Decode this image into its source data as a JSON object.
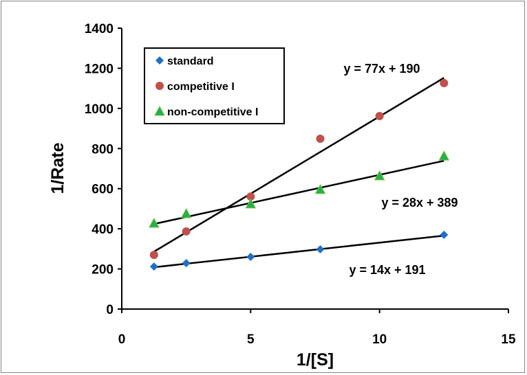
{
  "chart_data": {
    "type": "scatter",
    "title": "",
    "xlabel": "1/[S]",
    "ylabel": "1/Rate",
    "xlim": [
      0,
      15
    ],
    "ylim": [
      0,
      1400
    ],
    "xticks": [
      0,
      5,
      10,
      15
    ],
    "yticks": [
      0,
      200,
      400,
      600,
      800,
      1000,
      1200,
      1400
    ],
    "grid": false,
    "legend_position": "top-left",
    "series": [
      {
        "name": "standard",
        "marker": "diamond",
        "color": "#1F6FC5",
        "x": [
          1.25,
          2.5,
          5,
          7.7,
          10,
          12.5
        ],
        "y": [
          212,
          229,
          260,
          298,
          null,
          370
        ],
        "trendline": {
          "slope": 14,
          "intercept": 191,
          "label": "y = 14x + 191"
        }
      },
      {
        "name": "competitive I",
        "marker": "circle",
        "color": "#C0504D",
        "x": [
          1.25,
          2.5,
          5,
          7.7,
          10,
          12.5
        ],
        "y": [
          270,
          387,
          561,
          849,
          962,
          1126
        ],
        "trendline": {
          "slope": 77,
          "intercept": 190,
          "label": "y = 77x + 190"
        }
      },
      {
        "name": "non-competitive I",
        "marker": "triangle",
        "color": "#22B14C",
        "x": [
          1.25,
          2.5,
          5,
          7.7,
          10,
          12.5
        ],
        "y": [
          428,
          476,
          524,
          596,
          664,
          763
        ],
        "trendline": {
          "slope": 28,
          "intercept": 389,
          "label": "y = 28x + 389"
        }
      }
    ]
  }
}
